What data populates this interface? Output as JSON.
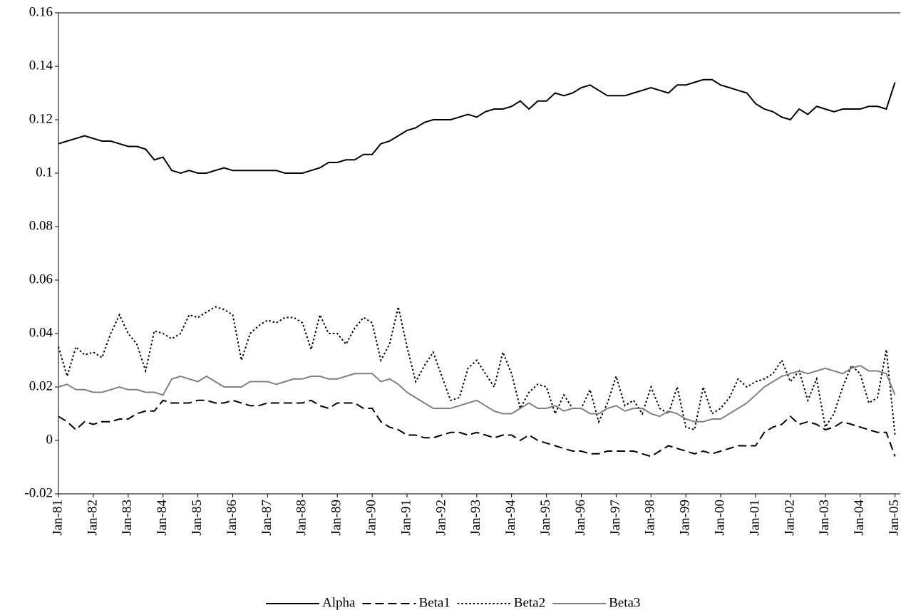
{
  "chart_data": {
    "type": "line",
    "categories": [
      "Jan-81",
      null,
      null,
      null,
      "Jan-82",
      null,
      null,
      null,
      "Jan-83",
      null,
      null,
      null,
      "Jan-84",
      null,
      null,
      null,
      "Jan-85",
      null,
      null,
      null,
      "Jan-86",
      null,
      null,
      null,
      "Jan-87",
      null,
      null,
      null,
      "Jan-88",
      null,
      null,
      null,
      "Jan-89",
      null,
      null,
      null,
      "Jan-90",
      null,
      null,
      null,
      "Jan-91",
      null,
      null,
      null,
      "Jan-92",
      null,
      null,
      null,
      "Jan-93",
      null,
      null,
      null,
      "Jan-94",
      null,
      null,
      null,
      "Jan-95",
      null,
      null,
      null,
      "Jan-96",
      null,
      null,
      null,
      "Jan-97",
      null,
      null,
      null,
      "Jan-98",
      null,
      null,
      null,
      "Jan-99",
      null,
      null,
      null,
      "Jan-00",
      null,
      null,
      null,
      "Jan-01",
      null,
      null,
      null,
      "Jan-02",
      null,
      null,
      null,
      "Jan-03",
      null,
      null,
      null,
      "Jan-04",
      null,
      null,
      null,
      "Jan-05"
    ],
    "series": [
      {
        "name": "Alpha",
        "color": "#000000",
        "dash": "solid",
        "values": [
          0.111,
          0.112,
          0.113,
          0.114,
          0.113,
          0.112,
          0.112,
          0.111,
          0.11,
          0.11,
          0.109,
          0.105,
          0.106,
          0.101,
          0.1,
          0.101,
          0.1,
          0.1,
          0.101,
          0.102,
          0.101,
          0.101,
          0.101,
          0.101,
          0.101,
          0.101,
          0.1,
          0.1,
          0.1,
          0.101,
          0.102,
          0.104,
          0.104,
          0.105,
          0.105,
          0.107,
          0.107,
          0.111,
          0.112,
          0.114,
          0.116,
          0.117,
          0.119,
          0.12,
          0.12,
          0.12,
          0.121,
          0.122,
          0.121,
          0.123,
          0.124,
          0.124,
          0.125,
          0.127,
          0.124,
          0.127,
          0.127,
          0.13,
          0.129,
          0.13,
          0.132,
          0.133,
          0.131,
          0.129,
          0.129,
          0.129,
          0.13,
          0.131,
          0.132,
          0.131,
          0.13,
          0.133,
          0.133,
          0.134,
          0.135,
          0.135,
          0.133,
          0.132,
          0.131,
          0.13,
          0.126,
          0.124,
          0.123,
          0.121,
          0.12,
          0.124,
          0.122,
          0.125,
          0.124,
          0.123,
          0.124,
          0.124,
          0.124,
          0.125,
          0.125,
          0.124,
          0.134
        ]
      },
      {
        "name": "Beta1",
        "color": "#000000",
        "dash": "dashed",
        "values": [
          0.009,
          0.007,
          0.004,
          0.007,
          0.006,
          0.007,
          0.007,
          0.008,
          0.008,
          0.01,
          0.011,
          0.011,
          0.015,
          0.014,
          0.014,
          0.014,
          0.015,
          0.015,
          0.014,
          0.014,
          0.015,
          0.014,
          0.013,
          0.013,
          0.014,
          0.014,
          0.014,
          0.014,
          0.014,
          0.015,
          0.013,
          0.012,
          0.014,
          0.014,
          0.014,
          0.012,
          0.012,
          0.007,
          0.005,
          0.004,
          0.002,
          0.002,
          0.001,
          0.001,
          0.002,
          0.003,
          0.003,
          0.002,
          0.003,
          0.002,
          0.001,
          0.002,
          0.002,
          0.0,
          0.002,
          0.0,
          -0.001,
          -0.002,
          -0.003,
          -0.004,
          -0.004,
          -0.005,
          -0.005,
          -0.004,
          -0.004,
          -0.004,
          -0.004,
          -0.005,
          -0.006,
          -0.004,
          -0.002,
          -0.003,
          -0.004,
          -0.005,
          -0.004,
          -0.005,
          -0.004,
          -0.003,
          -0.002,
          -0.002,
          -0.002,
          0.003,
          0.005,
          0.006,
          0.009,
          0.006,
          0.007,
          0.006,
          0.004,
          0.005,
          0.007,
          0.006,
          0.005,
          0.004,
          0.003,
          0.003,
          -0.006
        ]
      },
      {
        "name": "Beta2",
        "color": "#000000",
        "dash": "dotted",
        "values": [
          0.035,
          0.024,
          0.035,
          0.032,
          0.033,
          0.031,
          0.04,
          0.047,
          0.04,
          0.036,
          0.026,
          0.041,
          0.04,
          0.038,
          0.04,
          0.047,
          0.046,
          0.048,
          0.05,
          0.049,
          0.047,
          0.03,
          0.04,
          0.043,
          0.045,
          0.044,
          0.046,
          0.046,
          0.044,
          0.034,
          0.047,
          0.04,
          0.04,
          0.036,
          0.042,
          0.046,
          0.044,
          0.03,
          0.036,
          0.05,
          0.035,
          0.022,
          0.028,
          0.033,
          0.024,
          0.015,
          0.016,
          0.027,
          0.03,
          0.025,
          0.02,
          0.033,
          0.025,
          0.012,
          0.018,
          0.021,
          0.02,
          0.01,
          0.017,
          0.012,
          0.012,
          0.019,
          0.007,
          0.014,
          0.024,
          0.013,
          0.015,
          0.01,
          0.02,
          0.012,
          0.01,
          0.02,
          0.005,
          0.004,
          0.02,
          0.01,
          0.012,
          0.016,
          0.023,
          0.02,
          0.022,
          0.023,
          0.025,
          0.03,
          0.022,
          0.026,
          0.015,
          0.023,
          0.005,
          0.01,
          0.02,
          0.028,
          0.025,
          0.014,
          0.016,
          0.034,
          0.002
        ]
      },
      {
        "name": "Beta3",
        "color": "#808080",
        "dash": "solid",
        "values": [
          0.02,
          0.021,
          0.019,
          0.019,
          0.018,
          0.018,
          0.019,
          0.02,
          0.019,
          0.019,
          0.018,
          0.018,
          0.017,
          0.023,
          0.024,
          0.023,
          0.022,
          0.024,
          0.022,
          0.02,
          0.02,
          0.02,
          0.022,
          0.022,
          0.022,
          0.021,
          0.022,
          0.023,
          0.023,
          0.024,
          0.024,
          0.023,
          0.023,
          0.024,
          0.025,
          0.025,
          0.025,
          0.022,
          0.023,
          0.021,
          0.018,
          0.016,
          0.014,
          0.012,
          0.012,
          0.012,
          0.013,
          0.014,
          0.015,
          0.013,
          0.011,
          0.01,
          0.01,
          0.012,
          0.014,
          0.012,
          0.012,
          0.013,
          0.011,
          0.012,
          0.012,
          0.01,
          0.01,
          0.012,
          0.013,
          0.011,
          0.012,
          0.012,
          0.01,
          0.009,
          0.011,
          0.01,
          0.008,
          0.007,
          0.007,
          0.008,
          0.008,
          0.01,
          0.012,
          0.014,
          0.017,
          0.02,
          0.022,
          0.024,
          0.025,
          0.026,
          0.025,
          0.026,
          0.027,
          0.026,
          0.025,
          0.027,
          0.028,
          0.026,
          0.026,
          0.025,
          0.017
        ]
      }
    ],
    "ylim": [
      -0.02,
      0.16
    ],
    "yticks": [
      -0.02,
      0,
      0.02,
      0.04,
      0.06,
      0.08,
      0.1,
      0.12,
      0.14,
      0.16
    ],
    "grid": false,
    "legend": "bottom"
  }
}
